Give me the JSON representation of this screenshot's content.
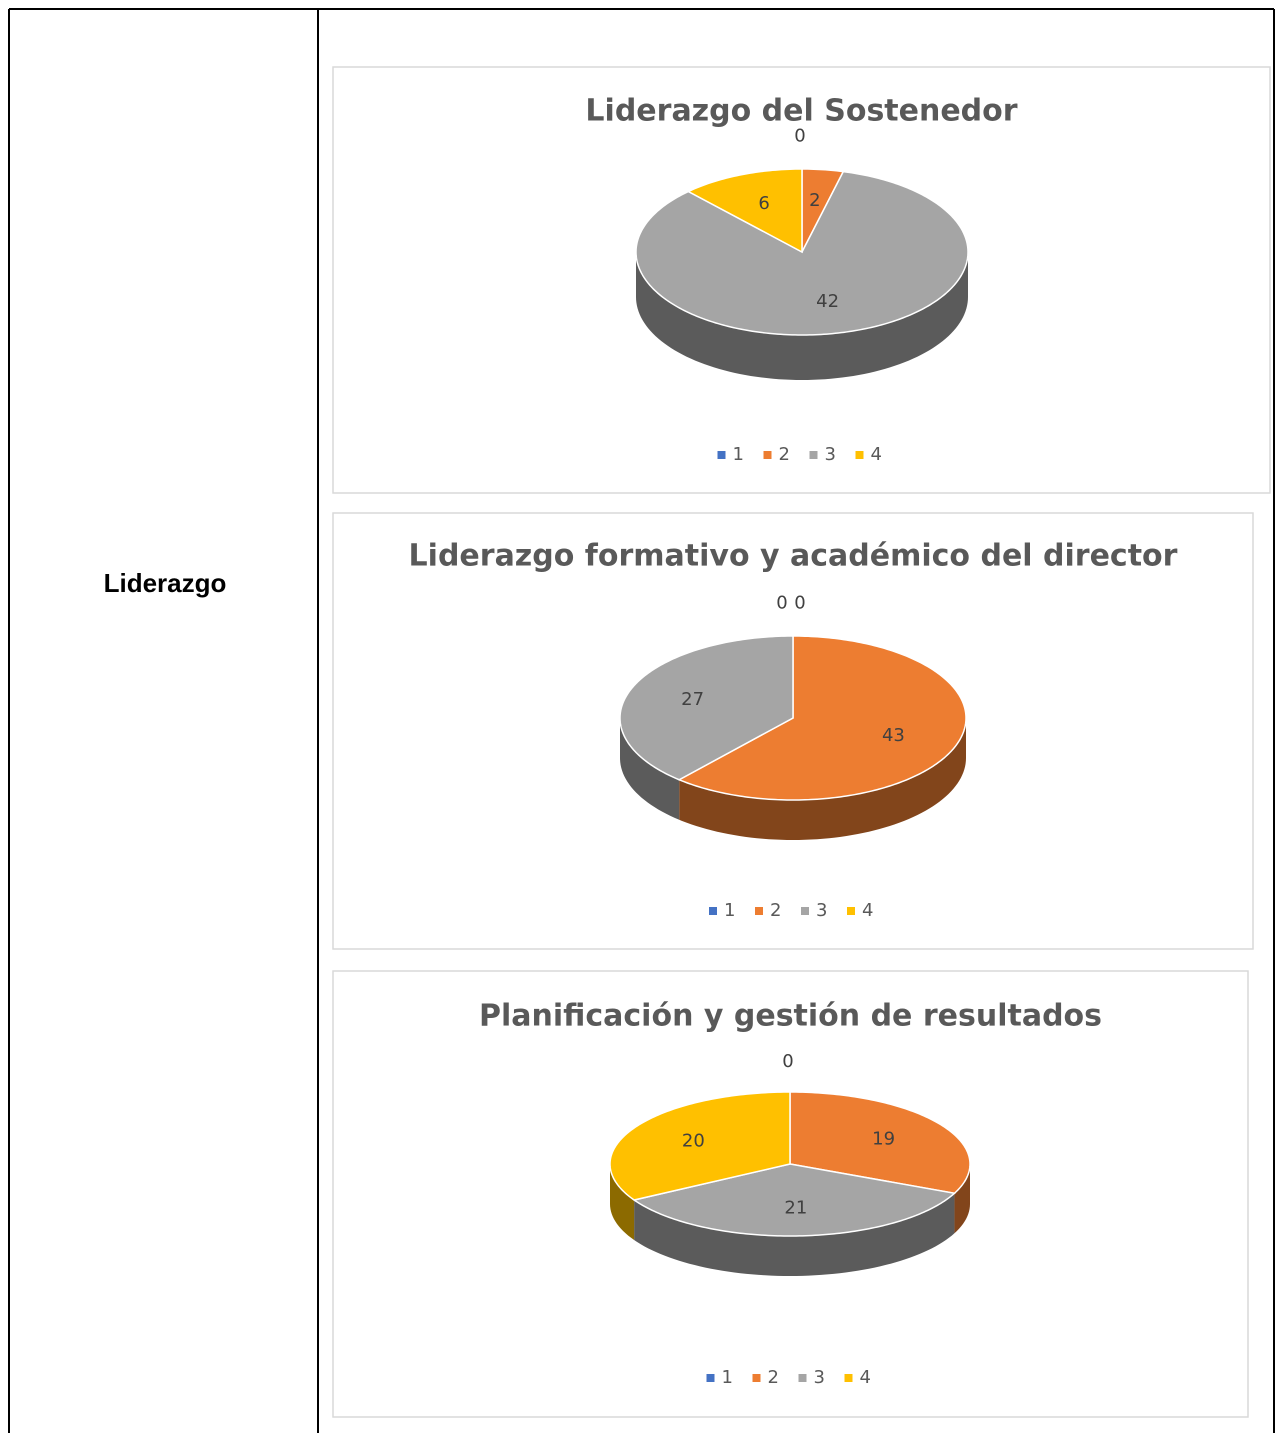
{
  "row_label": "Liderazgo",
  "chart_data": [
    {
      "type": "pie",
      "title": "Liderazgo del Sostenedor",
      "categories": [
        "1",
        "2",
        "3",
        "4"
      ],
      "values": [
        0,
        2,
        42,
        6
      ],
      "colors": [
        "#4472c4",
        "#ed7d31",
        "#a5a5a5",
        "#ffc000"
      ],
      "legend": "bottom"
    },
    {
      "type": "pie",
      "title": "Liderazgo formativo y académico del director",
      "categories": [
        "1",
        "2",
        "3",
        "4"
      ],
      "values": [
        0,
        43,
        27,
        0
      ],
      "colors": [
        "#4472c4",
        "#ed7d31",
        "#a5a5a5",
        "#ffc000"
      ],
      "legend": "bottom"
    },
    {
      "type": "pie",
      "title": "Planificación y gestión de resultados",
      "categories": [
        "1",
        "2",
        "3",
        "4"
      ],
      "values": [
        0,
        19,
        21,
        20
      ],
      "colors": [
        "#4472c4",
        "#ed7d31",
        "#a5a5a5",
        "#ffc000"
      ],
      "legend": "bottom"
    }
  ]
}
